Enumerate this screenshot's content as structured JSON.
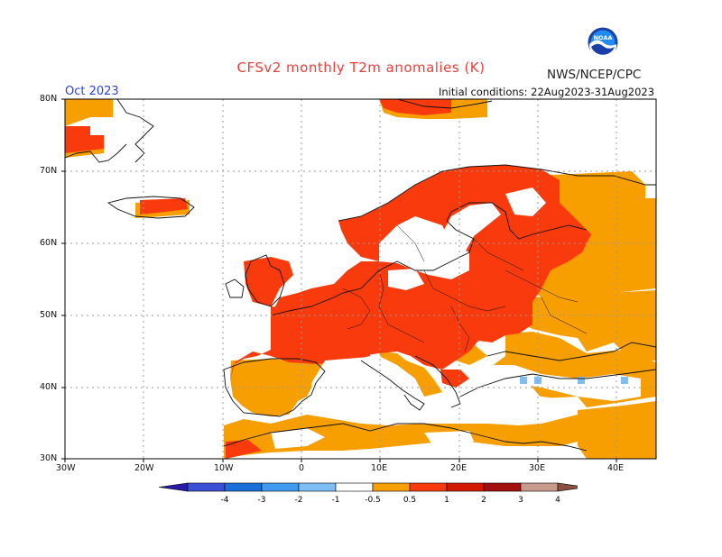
{
  "title": "CFSv2 monthly T2m anomalies (K)",
  "valid_month": "Oct 2023",
  "initial_conditions": "Initial conditions: 22Aug2023-31Aug2023",
  "agency": "NWS/NCEP/CPC",
  "logo_text": "NOAA",
  "lat_labels": [
    "80N",
    "70N",
    "60N",
    "50N",
    "40N",
    "30N"
  ],
  "lon_labels": [
    "30W",
    "20W",
    "10W",
    "0",
    "10E",
    "20E",
    "30E",
    "40E"
  ],
  "colorbar": {
    "colors": [
      "#2a1aa8",
      "#3b4fd6",
      "#1b6fd8",
      "#3f9af0",
      "#7fbdf5",
      "#ffffff",
      "#f79e00",
      "#f83a0c",
      "#d31a00",
      "#a30e0e",
      "#c89a8c",
      "#8a5040"
    ],
    "tick_labels": [
      "-4",
      "-3",
      "-2",
      "-1",
      "-0.5",
      "0.5",
      "1",
      "2",
      "3",
      "4"
    ]
  },
  "colors": {
    "anom_0_5_1": "#f79e00",
    "anom_1_2": "#f83a0c",
    "anom_neg_0_5_1": "#7fbdf5",
    "title": "#e8413c",
    "month": "#2a43d8"
  }
}
